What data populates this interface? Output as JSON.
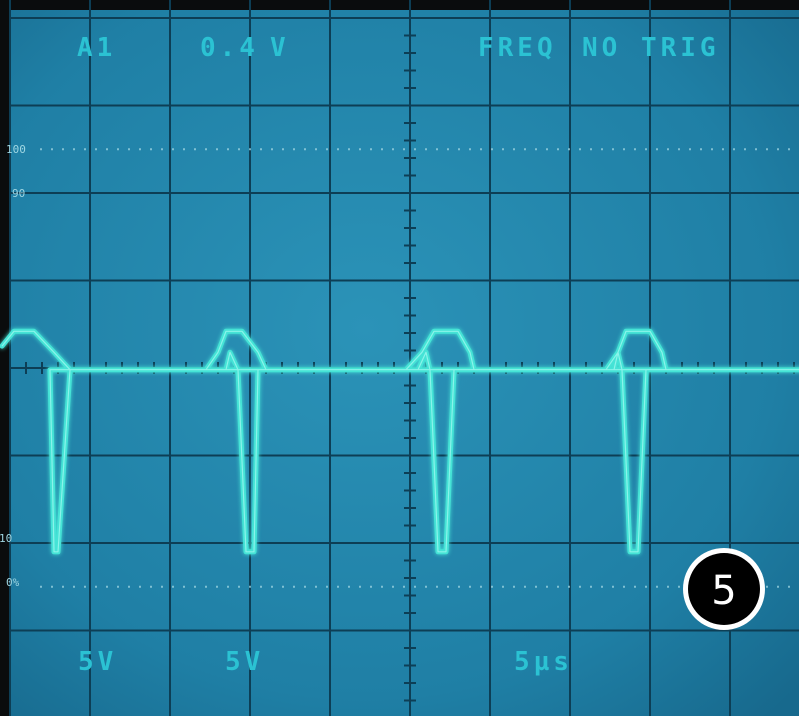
{
  "chart_data": {
    "type": "line",
    "title": "",
    "xlabel": "",
    "ylabel": "",
    "grid": true,
    "grid_divisions": {
      "x": 10,
      "y": 8
    },
    "minor_ticks_per_division": 5,
    "xlim": [
      0,
      10
    ],
    "ylim": [
      0,
      8
    ],
    "series": [
      {
        "x": [
          -0.1,
          0.05,
          0.3,
          0.55,
          0.75,
          0.75,
          0.6,
          0.55,
          0.5,
          2.45,
          2.6,
          2.7,
          2.9,
          3.1,
          3.2,
          3.3,
          3.1,
          3.05,
          2.95,
          2.85,
          2.75,
          2.7,
          2.6,
          2.45,
          4.95,
          5.15,
          5.3,
          5.6,
          5.75,
          5.8,
          5.55,
          5.45,
          5.35,
          5.25,
          5.2,
          5.1,
          4.95,
          7.45,
          7.6,
          7.7,
          8.0,
          8.15,
          8.2,
          7.95,
          7.85,
          7.75,
          7.65,
          7.6,
          7.55,
          7.45,
          9.99
        ],
        "y": [
          4.25,
          4.42,
          4.42,
          4.18,
          3.98,
          3.98,
          1.9,
          1.9,
          3.98,
          3.98,
          4.18,
          4.42,
          4.42,
          4.18,
          3.98,
          3.98,
          3.98,
          1.9,
          1.9,
          3.98,
          4.18,
          3.98,
          3.98,
          3.98,
          3.98,
          4.18,
          4.42,
          4.42,
          4.18,
          3.98,
          3.98,
          1.9,
          1.9,
          3.98,
          4.18,
          3.98,
          3.98,
          3.98,
          4.18,
          4.42,
          4.42,
          4.18,
          3.98,
          3.98,
          1.9,
          1.9,
          3.98,
          4.18,
          3.98,
          3.98,
          3.98
        ],
        "units": "divisions"
      }
    ]
  },
  "readouts": {
    "channel": "A1",
    "scale": "0.4",
    "scale_unit": "V",
    "freq": "FREQ",
    "trigger": "NO TRIG",
    "ch1_volts": "5V",
    "ch2_volts": "5V",
    "timebase": "5µs"
  },
  "percent_marks": {
    "p100": "100",
    "p90": "90",
    "p10": "10",
    "p0": "0%"
  },
  "badge": {
    "number": "5"
  },
  "colors": {
    "screen": "#1e7fa3",
    "grid": "#0d3e55",
    "trace": "#45e3d6",
    "readout": "#2bc2d3",
    "bezel": "#0a0c0d"
  }
}
